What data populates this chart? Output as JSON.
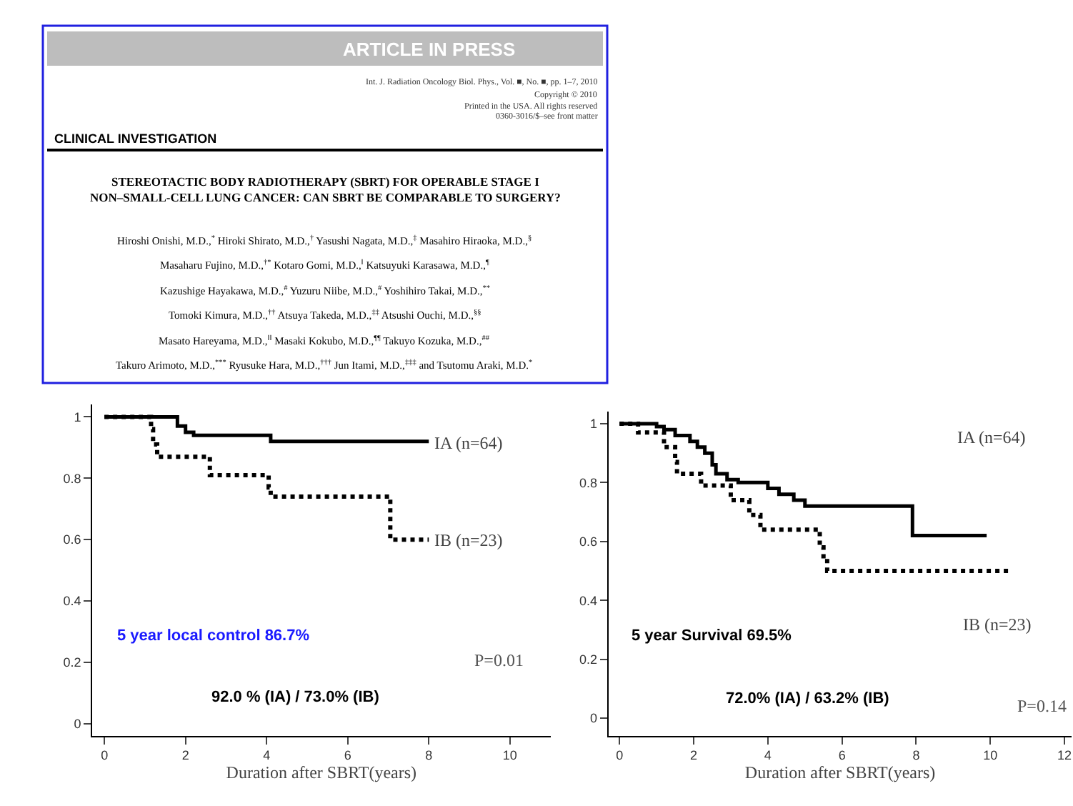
{
  "chart_data": [
    {
      "type": "other",
      "title": "STEREOTACTIC BODY RADIOTHERAPY (SBRT) FOR OPERABLE STAGE I\nNON–SMALL-CELL LUNG CANCER: CAN SBRT BE COMPARABLE TO SURGERY?",
      "annotations": [
        "ARTICLE IN PRESS",
        "Int. J. Radiation Oncology Biol. Phys., Vol. ■, No. ■, pp. 1–7, 2010",
        "Copyright © 2010",
        "Printed in the USA. All rights reserved",
        "0360-3016/$–see front matter",
        "CLINICAL INVESTIGATION",
        "Hiroshi Onishi, M.D.,$^{*}$ Hiroki Shirato, M.D.,$^{†}$ Yasushi Nagata, M.D.,$^{‡}$ Masahiro Hiraoka, M.D.,$^{§}$",
        "Masaharu Fujino, M.D.,$^{†*}$ Kotaro Gomi, M.D.,$^{‖}$ Katsuyuki Karasawa, M.D.,$^{¶}$",
        "Kazushige Hayakawa, M.D.,$^{#}$ Yuzuru Niibe, M.D.,$^{#}$ Yoshihiro Takai, M.D.,$^{**}$",
        "Tomoki Kimura, M.D.,$^{††}$ Atsuya Takeda, M.D.,$^{‡‡}$ Atsushi Ouchi, M.D.,$^{§§}$",
        "Masato Hareyama, M.D.,$^{‖‖}$ Masaki Kokubo, M.D.,$^{¶¶}$ Takuyo Kozuka, M.D.,$^{##}$",
        "Takuro Arimoto, M.D.,$^{***}$ Ryusuke Hara, M.D.,$^{†††}$ Jun Itami, M.D.,$^{‡‡‡}$ and Tsutomu Araki, M.D.$^{*}$"
      ]
    },
    {
      "type": "step",
      "xlabel": "Duration after SBRT(years)",
      "xlim": [
        -0.3,
        11
      ],
      "xticks": [
        0,
        2,
        4,
        6,
        8,
        10
      ],
      "ylim": [
        -0.04,
        1.04
      ],
      "yticks": [
        0,
        0.2,
        0.4,
        0.6,
        0.8,
        1
      ],
      "series": [
        {
          "color": "#000000",
          "line_style": "solid",
          "x": [
            0,
            1.8,
            2.0,
            2.2,
            2.5,
            4.1,
            8.0
          ],
          "values": [
            1,
            0.97,
            0.95,
            0.94,
            0.94,
            0.92,
            0.92
          ]
        },
        {
          "color": "#000000",
          "line_style": "dotted",
          "x": [
            0,
            1.15,
            1.2,
            1.3,
            2.6,
            4.05,
            4.1,
            7.05,
            8.0
          ],
          "values": [
            1,
            0.96,
            0.91,
            0.87,
            0.81,
            0.77,
            0.74,
            0.6,
            0.6
          ]
        }
      ],
      "annotations": [
        "IA (n=64)",
        "IB (n=23)",
        "5 year local control 86.7%",
        "92.0 % (IA) / 73.0% (IB)",
        "P=0.01"
      ]
    },
    {
      "type": "step",
      "xlabel": "Duration after SBRT(years)",
      "xlim": [
        -0.3,
        12.2
      ],
      "xticks": [
        0,
        2,
        4,
        6,
        8,
        10,
        12
      ],
      "ylim": [
        -0.06,
        1.04
      ],
      "yticks": [
        0,
        0.2,
        0.4,
        0.6,
        0.8,
        1
      ],
      "series": [
        {
          "color": "#000000",
          "line_style": "solid",
          "x": [
            0,
            1.0,
            1.2,
            1.5,
            1.9,
            2.1,
            2.3,
            2.5,
            2.6,
            2.9,
            3.2,
            4.0,
            4.3,
            4.7,
            5.0,
            7.9,
            9.9
          ],
          "values": [
            1,
            0.99,
            0.98,
            0.96,
            0.94,
            0.92,
            0.9,
            0.86,
            0.83,
            0.81,
            0.8,
            0.78,
            0.76,
            0.74,
            0.72,
            0.62,
            0.62
          ]
        },
        {
          "color": "#000000",
          "line_style": "dotted",
          "x": [
            0,
            0.5,
            1.2,
            1.5,
            1.55,
            2.2,
            3.0,
            3.5,
            3.8,
            5.4,
            5.5,
            5.6,
            10.5
          ],
          "values": [
            1,
            0.97,
            0.92,
            0.87,
            0.83,
            0.79,
            0.74,
            0.69,
            0.64,
            0.58,
            0.55,
            0.5,
            0.5
          ]
        }
      ],
      "annotations": [
        "IA (n=64)",
        "IB (n=23)",
        "5 year Survival 69.5%",
        "72.0% (IA) / 63.2% (IB)",
        "P=0.14"
      ]
    }
  ]
}
